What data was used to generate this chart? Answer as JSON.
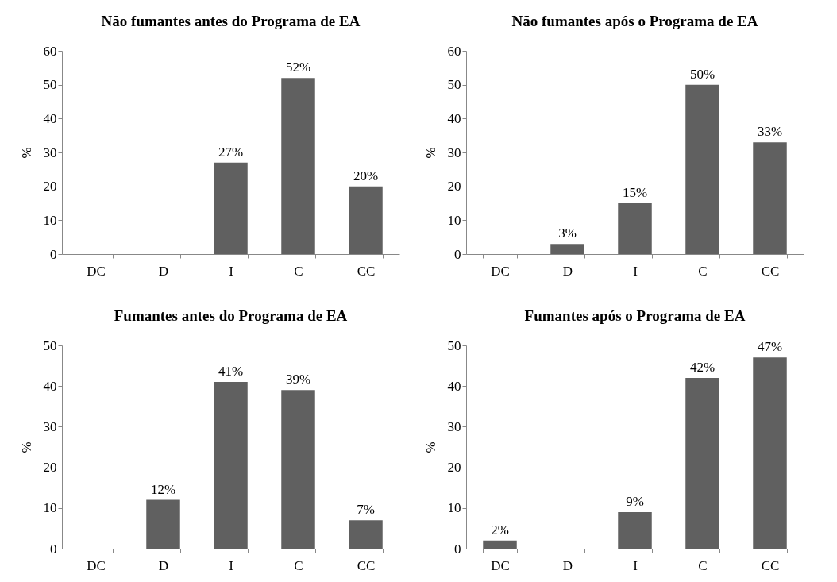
{
  "chart_data": [
    {
      "type": "bar",
      "title": "Não fumantes antes do Programa de EA",
      "ylabel": "%",
      "categories": [
        "DC",
        "D",
        "I",
        "C",
        "CC"
      ],
      "values": [
        0,
        0,
        27,
        52,
        20
      ],
      "value_labels": [
        null,
        null,
        "27%",
        "52%",
        "20%"
      ],
      "color": "#606060",
      "ylim": [
        0,
        60
      ],
      "yticks": [
        0,
        10,
        20,
        30,
        40,
        50,
        60
      ]
    },
    {
      "type": "bar",
      "title": "Não fumantes após o Programa de EA",
      "ylabel": "%",
      "categories": [
        "DC",
        "D",
        "I",
        "C",
        "CC"
      ],
      "values": [
        0,
        3,
        15,
        50,
        33
      ],
      "value_labels": [
        null,
        "3%",
        "15%",
        "50%",
        "33%"
      ],
      "color": "#606060",
      "ylim": [
        0,
        60
      ],
      "yticks": [
        0,
        10,
        20,
        30,
        40,
        50,
        60
      ]
    },
    {
      "type": "bar",
      "title": "Fumantes antes do Programa de EA",
      "ylabel": "%",
      "categories": [
        "DC",
        "D",
        "I",
        "C",
        "CC"
      ],
      "values": [
        0,
        12,
        41,
        39,
        7
      ],
      "value_labels": [
        null,
        "12%",
        "41%",
        "39%",
        "7%"
      ],
      "color": "#606060",
      "ylim": [
        0,
        50
      ],
      "yticks": [
        0,
        10,
        20,
        30,
        40,
        50
      ]
    },
    {
      "type": "bar",
      "title": "Fumantes após o Programa de EA",
      "ylabel": "%",
      "categories": [
        "DC",
        "D",
        "I",
        "C",
        "CC"
      ],
      "values": [
        2,
        0,
        9,
        42,
        47
      ],
      "value_labels": [
        "2%",
        null,
        "9%",
        "42%",
        "47%"
      ],
      "color": "#606060",
      "ylim": [
        0,
        50
      ],
      "yticks": [
        0,
        10,
        20,
        30,
        40,
        50
      ]
    }
  ]
}
